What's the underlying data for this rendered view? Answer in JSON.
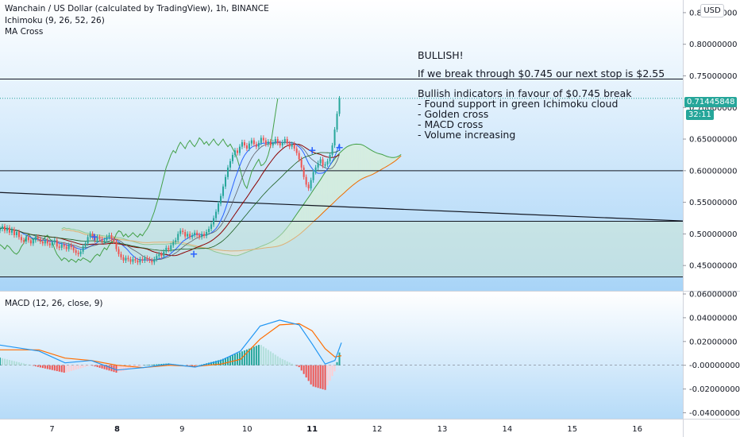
{
  "header": {
    "title": "Wanchain / US Dollar (calculated by TradingView), 1h, BINANCE",
    "indicators": [
      "Ichimoku (9, 26, 52, 26)",
      "MA Cross"
    ],
    "currency_button": "USD"
  },
  "annotations": {
    "headline": "BULLISH!",
    "line1": "If we break through $0.745 our next stop is $2.55",
    "list_title": "Bullish indicators in favour of $0.745 break",
    "list": [
      "- Found support in green Ichimoku cloud",
      "- Golden cross",
      "- MACD cross",
      "- Volume increasing"
    ]
  },
  "price_tags": {
    "last_price": "0.71445848",
    "countdown": "32:11",
    "last_color": "#26a69a"
  },
  "colors": {
    "up": "#26a69a",
    "down": "#ef5350",
    "cloud_green": "#d6eed9",
    "cloud_red": "#f3dede",
    "tenkan": "#2962ff",
    "kijun": "#8b0000",
    "chikou": "#43a047",
    "span_a": "#43a047",
    "span_b": "#ef6c00",
    "macd": "#2196f3",
    "signal": "#ff6d00",
    "bg_top": "#ffffff",
    "bg_bottom": "#a8d4f7"
  },
  "chart_data": [
    {
      "type": "candlestick",
      "title": "Wanchain / US Dollar (calculated by TradingView), 1h, BINANCE",
      "x_ticks": [
        "7",
        "8",
        "9",
        "10",
        "11",
        "12",
        "13",
        "14",
        "15",
        "16"
      ],
      "y_ticks": [
        "0.85000000",
        "0.80000000",
        "0.75000000",
        "0.70000000",
        "0.65000000",
        "0.60000000",
        "0.55000000",
        "0.50000000",
        "0.45000000"
      ],
      "ylim": [
        0.41,
        0.87
      ],
      "xlim": [
        6.2,
        16.7
      ],
      "horizontal_levels": [
        0.745,
        0.6,
        0.52,
        0.432
      ],
      "trendline": [
        [
          6.2,
          0.5655
        ],
        [
          16.7,
          0.5205
        ]
      ],
      "last_price": 0.71445848,
      "candles_close": [
        0.508,
        0.512,
        0.505,
        0.51,
        0.502,
        0.507,
        0.498,
        0.503,
        0.495,
        0.49,
        0.488,
        0.495,
        0.49,
        0.485,
        0.49,
        0.495,
        0.492,
        0.488,
        0.485,
        0.49,
        0.485,
        0.482,
        0.487,
        0.49,
        0.48,
        0.478,
        0.483,
        0.48,
        0.476,
        0.482,
        0.479,
        0.474,
        0.47,
        0.468,
        0.472,
        0.48,
        0.485,
        0.495,
        0.5,
        0.495,
        0.49,
        0.495,
        0.492,
        0.488,
        0.49,
        0.495,
        0.498,
        0.492,
        0.488,
        0.476,
        0.468,
        0.463,
        0.458,
        0.462,
        0.46,
        0.456,
        0.46,
        0.458,
        0.455,
        0.46,
        0.458,
        0.462,
        0.46,
        0.458,
        0.455,
        0.46,
        0.465,
        0.468,
        0.465,
        0.472,
        0.478,
        0.475,
        0.482,
        0.487,
        0.49,
        0.5,
        0.505,
        0.503,
        0.496,
        0.5,
        0.495,
        0.498,
        0.502,
        0.498,
        0.495,
        0.5,
        0.497,
        0.503,
        0.508,
        0.515,
        0.525,
        0.535,
        0.548,
        0.56,
        0.575,
        0.59,
        0.605,
        0.615,
        0.625,
        0.632,
        0.628,
        0.638,
        0.645,
        0.64,
        0.635,
        0.643,
        0.648,
        0.642,
        0.638,
        0.644,
        0.652,
        0.648,
        0.642,
        0.646,
        0.64,
        0.645,
        0.65,
        0.644,
        0.64,
        0.645,
        0.65,
        0.643,
        0.638,
        0.642,
        0.635,
        0.628,
        0.618,
        0.605,
        0.59,
        0.578,
        0.572,
        0.585,
        0.598,
        0.605,
        0.612,
        0.618,
        0.608,
        0.61,
        0.615,
        0.625,
        0.64,
        0.665,
        0.69,
        0.714
      ],
      "x_start": 6.2,
      "x_step": 0.0365
    },
    {
      "type": "line",
      "title": "MACD (12, 26, close, 9)",
      "y_ticks": [
        "0.06000000",
        "0.04000000",
        "0.02000000",
        "-0.00000000",
        "-0.02000000",
        "-0.04000000"
      ],
      "ylim": [
        -0.045,
        0.062
      ],
      "series": [
        {
          "name": "MACD",
          "x": [
            6.2,
            6.8,
            7.2,
            7.6,
            8.0,
            8.4,
            8.8,
            9.2,
            9.6,
            9.9,
            10.2,
            10.5,
            10.8,
            11.0,
            11.2,
            11.35,
            11.45
          ],
          "values": [
            0.017,
            0.012,
            0.002,
            0.004,
            -0.004,
            -0.002,
            0.001,
            -0.0015,
            0.004,
            0.012,
            0.033,
            0.038,
            0.034,
            0.018,
            0.001,
            0.004,
            0.019
          ]
        },
        {
          "name": "Signal",
          "x": [
            6.2,
            6.8,
            7.2,
            7.6,
            8.0,
            8.4,
            8.8,
            9.2,
            9.6,
            9.9,
            10.2,
            10.5,
            10.8,
            11.0,
            11.2,
            11.35,
            11.45
          ],
          "values": [
            0.013,
            0.013,
            0.006,
            0.004,
            0.0,
            -0.002,
            0.0,
            -0.001,
            0.001,
            0.005,
            0.022,
            0.034,
            0.035,
            0.029,
            0.014,
            0.007,
            0.008
          ]
        }
      ]
    }
  ]
}
